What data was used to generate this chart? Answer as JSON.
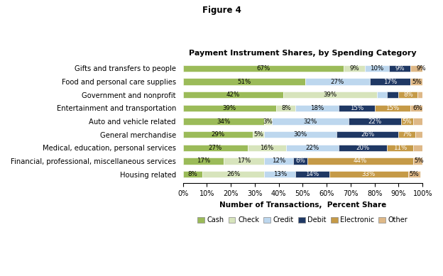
{
  "title_line1": "Figure 4",
  "title_line2": "Payment Instrument Shares, by Spending Category",
  "xlabel": "Number of Transactions,  Percent Share",
  "categories": [
    "Housing related",
    "Financial, professional, miscellaneous services",
    "Medical, education, personal services",
    "General merchandise",
    "Auto and vehicle related",
    "Entertainment and transportation",
    "Government and nonprofit",
    "Food and personal care supplies",
    "Gifts and transfers to people"
  ],
  "series": {
    "Cash": [
      8,
      17,
      27,
      29,
      34,
      39,
      42,
      51,
      67
    ],
    "Check": [
      26,
      17,
      16,
      5,
      3,
      8,
      39,
      0,
      9
    ],
    "Credit": [
      13,
      12,
      22,
      30,
      32,
      18,
      4,
      27,
      10
    ],
    "Debit": [
      14,
      6,
      20,
      26,
      22,
      15,
      5,
      17,
      9
    ],
    "Electronic": [
      33,
      44,
      11,
      7,
      5,
      15,
      8,
      0,
      0
    ],
    "Other": [
      5,
      5,
      11,
      7,
      5,
      6,
      8,
      5,
      9
    ]
  },
  "colors": {
    "Cash": "#9BBB59",
    "Check": "#D7E4BC",
    "Credit": "#BDD7EE",
    "Debit": "#1F3864",
    "Electronic": "#C59A47",
    "Other": "#DEB887"
  },
  "label_data": {
    "Housing related": [
      8,
      26,
      13,
      14,
      33,
      5
    ],
    "Financial, professional, miscellaneous services": [
      17,
      17,
      12,
      6,
      44,
      5
    ],
    "Medical, education, personal services": [
      27,
      16,
      22,
      20,
      11,
      0
    ],
    "General merchandise": [
      29,
      5,
      30,
      26,
      7,
      0
    ],
    "Auto and vehicle related": [
      34,
      3,
      32,
      22,
      5,
      0
    ],
    "Entertainment and transportation": [
      39,
      8,
      18,
      15,
      15,
      6
    ],
    "Government and nonprofit": [
      42,
      39,
      0,
      0,
      8,
      0
    ],
    "Food and personal care supplies": [
      51,
      0,
      27,
      17,
      0,
      5
    ],
    "Gifts and transfers to people": [
      67,
      9,
      10,
      9,
      0,
      9
    ]
  },
  "show_label": {
    "Housing related": [
      true,
      true,
      true,
      true,
      true,
      true
    ],
    "Financial, professional, miscellaneous services": [
      true,
      true,
      true,
      true,
      true,
      true
    ],
    "Medical, education, personal services": [
      true,
      true,
      true,
      true,
      true,
      false
    ],
    "General merchandise": [
      true,
      true,
      true,
      true,
      true,
      false
    ],
    "Auto and vehicle related": [
      true,
      true,
      true,
      true,
      true,
      false
    ],
    "Entertainment and transportation": [
      true,
      true,
      true,
      true,
      true,
      true
    ],
    "Government and nonprofit": [
      true,
      true,
      false,
      false,
      true,
      false
    ],
    "Food and personal care supplies": [
      true,
      false,
      true,
      true,
      false,
      true
    ],
    "Gifts and transfers to people": [
      true,
      true,
      true,
      true,
      false,
      true
    ]
  },
  "legend_order": [
    "Cash",
    "Check",
    "Credit",
    "Debit",
    "Electronic",
    "Other"
  ],
  "xlim": [
    0,
    100
  ],
  "background_color": "#FFFFFF"
}
